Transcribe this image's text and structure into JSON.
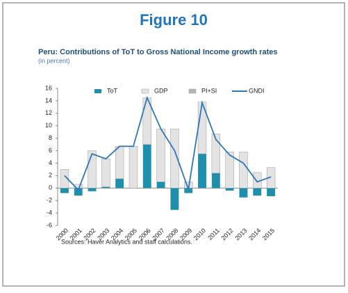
{
  "header": {
    "title": "Figure 10"
  },
  "chart_data": {
    "type": "bar",
    "title": "Peru: Contributions of ToT to Gross National Income growth rates",
    "subtitle": "(in percent)",
    "categories": [
      "2000",
      "2001",
      "2002",
      "2003",
      "2004",
      "2005",
      "2006",
      "2007",
      "2008",
      "2009",
      "2010",
      "2011",
      "2012",
      "2013",
      "2014",
      "2015"
    ],
    "series": [
      {
        "name": "ToT",
        "color": "#1f8fae",
        "values": [
          -0.8,
          -1.2,
          -0.5,
          0.2,
          1.5,
          0,
          7.0,
          1.0,
          -3.5,
          -0.8,
          5.5,
          2.4,
          -0.4,
          -1.5,
          -1.2,
          -1.3
        ]
      },
      {
        "name": "GDP",
        "color": "#e3e3e3",
        "values": [
          3.0,
          0.6,
          6.0,
          4.5,
          5.2,
          6.7,
          7.5,
          8.5,
          9.5,
          1.0,
          8.3,
          6.3,
          5.8,
          5.8,
          2.5,
          3.3
        ]
      },
      {
        "name": "PI+SI",
        "color": "#b8b8b8",
        "values": [
          0,
          0,
          0,
          0,
          0,
          0,
          0,
          0,
          0,
          0,
          0,
          0,
          0,
          0,
          0,
          0
        ]
      },
      {
        "name": "GNDI",
        "color": "#2e75b6",
        "type": "line",
        "values": [
          2.0,
          -0.3,
          5.5,
          4.7,
          6.7,
          6.7,
          14.5,
          9.5,
          6.0,
          -0.2,
          13.7,
          7.8,
          5.3,
          4.0,
          1.0,
          1.8
        ]
      }
    ],
    "ylim": [
      -6,
      16
    ],
    "yticks": [
      -6,
      -4,
      -2,
      0,
      2,
      4,
      6,
      8,
      10,
      12,
      14,
      16
    ],
    "grid": false,
    "legend": "top",
    "note": "Sources: Haver Analytics and staff calculations."
  }
}
